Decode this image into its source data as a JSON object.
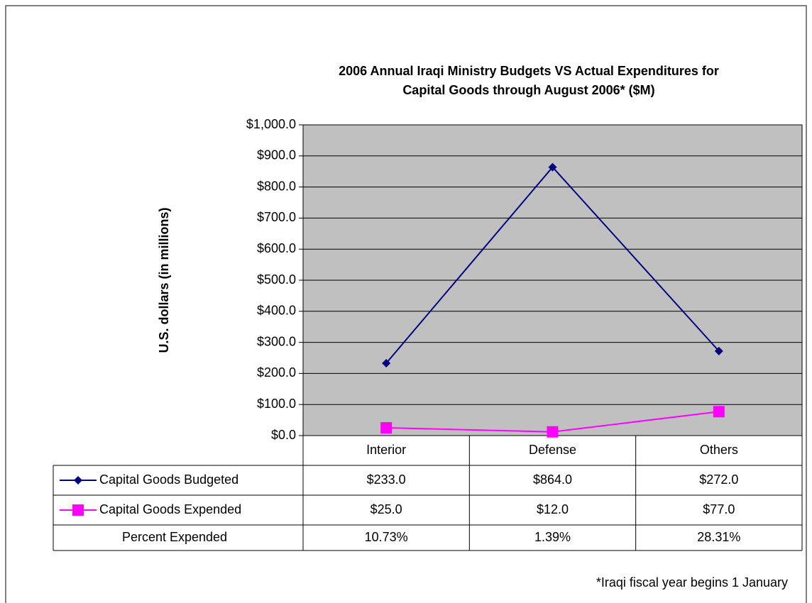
{
  "chart_data": {
    "type": "line",
    "title": [
      "2006 Annual Iraqi Ministry Budgets VS Actual Expenditures for",
      "Capital Goods through August 2006* ($M)"
    ],
    "ylabel": "U.S. dollars (in millions)",
    "categories": [
      "Interior",
      "Defense",
      "Others"
    ],
    "series": [
      {
        "name": "Capital Goods Budgeted",
        "color": "#000080",
        "marker": "diamond",
        "values": [
          233,
          864,
          272
        ],
        "value_labels": [
          "$233.0",
          "$864.0",
          "$272.0"
        ]
      },
      {
        "name": "Capital Goods Expended",
        "color": "#ff00ff",
        "marker": "square",
        "values": [
          25,
          12,
          77
        ],
        "value_labels": [
          "$25.0",
          "$12.0",
          "$77.0"
        ]
      }
    ],
    "percent_expended": {
      "name": "Percent Expended",
      "values": [
        10.73,
        1.39,
        28.31
      ],
      "value_labels": [
        "10.73%",
        "1.39%",
        "28.31%"
      ]
    },
    "ylim": [
      0,
      1000
    ],
    "yticks": [
      {
        "value": 0,
        "label": "$0.0"
      },
      {
        "value": 100,
        "label": "$100.0"
      },
      {
        "value": 200,
        "label": "$200.0"
      },
      {
        "value": 300,
        "label": "$300.0"
      },
      {
        "value": 400,
        "label": "$400.0"
      },
      {
        "value": 500,
        "label": "$500.0"
      },
      {
        "value": 600,
        "label": "$600.0"
      },
      {
        "value": 700,
        "label": "$700.0"
      },
      {
        "value": 800,
        "label": "$800.0"
      },
      {
        "value": 900,
        "label": "$900.0"
      },
      {
        "value": 1000,
        "label": "$1,000.0"
      }
    ],
    "grid": true,
    "plot_background": "#c0c0c0",
    "footnote": "*Iraqi fiscal year begins 1 January"
  }
}
